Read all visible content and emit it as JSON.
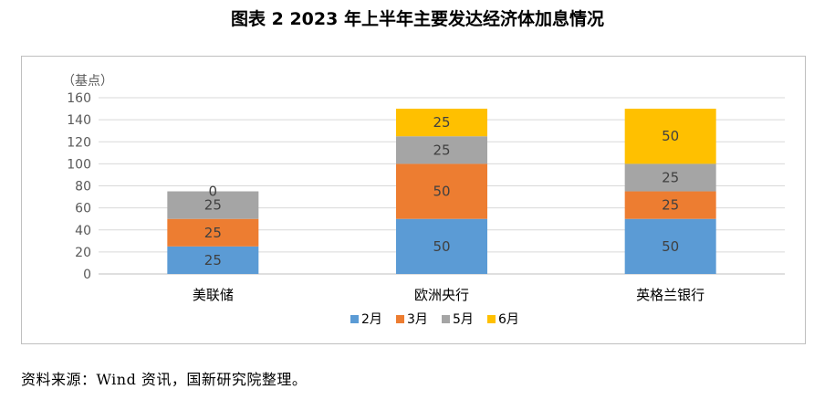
{
  "title": "图表 2 2023 年上半年主要发达经济体加息情况",
  "source": "资料来源：Wind 资讯，国新研究院整理。",
  "colors": {
    "feb": "#5B9BD5",
    "mar": "#ED7D31",
    "may": "#A5A5A5",
    "jun": "#FFC000",
    "grid": "#d9d9d9",
    "axis": "#bfbfbf"
  },
  "chart_data": {
    "type": "bar",
    "stacked": true,
    "ylabel": "（基点）",
    "ylim": [
      0,
      160
    ],
    "yticks": [
      0,
      20,
      40,
      60,
      80,
      100,
      120,
      140,
      160
    ],
    "grid": true,
    "legend_position": "bottom",
    "categories": [
      "美联储",
      "欧洲央行",
      "英格兰银行"
    ],
    "series": [
      {
        "name": "2月",
        "color": "#5B9BD5",
        "values": [
          25,
          50,
          50
        ]
      },
      {
        "name": "3月",
        "color": "#ED7D31",
        "values": [
          25,
          50,
          25
        ]
      },
      {
        "name": "5月",
        "color": "#A5A5A5",
        "values": [
          25,
          25,
          25
        ]
      },
      {
        "name": "6月",
        "color": "#FFC000",
        "values": [
          0,
          25,
          50
        ]
      }
    ]
  }
}
